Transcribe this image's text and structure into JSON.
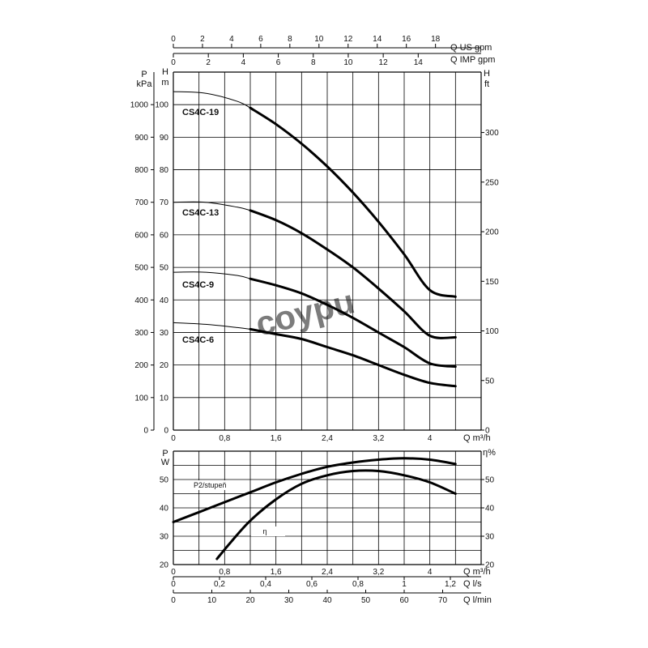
{
  "chart_data": [
    {
      "type": "line",
      "name": "head-curves",
      "x_unit": "Q m³/h",
      "x_range": [
        0,
        4.8
      ],
      "x_ticks": [
        "0",
        "0,8",
        "1,6",
        "2,4",
        "3,2",
        "4"
      ],
      "left_axes": {
        "pressure": {
          "label_top": "P",
          "label_bottom": "kPa",
          "range": [
            0,
            1100
          ],
          "ticks": [
            "0",
            "100",
            "200",
            "300",
            "400",
            "500",
            "600",
            "700",
            "800",
            "900",
            "1000"
          ]
        },
        "head_m": {
          "label_top": "H",
          "label_bottom": "m",
          "range": [
            0,
            110
          ],
          "ticks": [
            "0",
            "10",
            "20",
            "30",
            "40",
            "50",
            "60",
            "70",
            "80",
            "90",
            "100"
          ]
        }
      },
      "right_axis": {
        "label_top": "H",
        "label_bottom": "ft",
        "ticks": [
          "0",
          "50",
          "100",
          "150",
          "200",
          "250",
          "300"
        ],
        "ft_per_m": 3.2808
      },
      "top_axes": {
        "us_gpm": {
          "label": "Q US gpm",
          "ticks": [
            "0",
            "2",
            "4",
            "6",
            "8",
            "10",
            "12",
            "14",
            "16",
            "18"
          ],
          "gpm_per_m3h": 4.4029
        },
        "imp_gpm": {
          "label": "Q IMP gpm",
          "ticks": [
            "0",
            "2",
            "4",
            "6",
            "8",
            "10",
            "12",
            "14"
          ],
          "gpm_per_m3h": 3.6662
        }
      },
      "operating_range": [
        1.2,
        4.4
      ],
      "series": [
        {
          "name": "CS4C-19",
          "x": [
            0,
            0.5,
            1.0,
            1.2,
            1.6,
            2.0,
            2.4,
            2.8,
            3.2,
            3.6,
            4.0,
            4.4
          ],
          "y": [
            104,
            103.5,
            101,
            99,
            94,
            88,
            81,
            73,
            64,
            54,
            43,
            41
          ]
        },
        {
          "name": "CS4C-13",
          "x": [
            0,
            0.5,
            1.0,
            1.2,
            1.6,
            2.0,
            2.4,
            2.8,
            3.2,
            3.6,
            4.0,
            4.4
          ],
          "y": [
            70,
            70,
            68.5,
            67.5,
            64.5,
            60.5,
            55.5,
            50,
            43.5,
            36.5,
            29,
            28.5
          ]
        },
        {
          "name": "CS4C-9",
          "x": [
            0,
            0.5,
            1.0,
            1.2,
            1.6,
            2.0,
            2.4,
            2.8,
            3.2,
            3.6,
            4.0,
            4.4
          ],
          "y": [
            48.5,
            48.5,
            47.5,
            46.5,
            44.5,
            42,
            38.5,
            34.5,
            30,
            25.5,
            20.5,
            19.5
          ]
        },
        {
          "name": "CS4C-6",
          "x": [
            0,
            0.5,
            1.0,
            1.2,
            1.6,
            2.0,
            2.4,
            2.8,
            3.2,
            3.6,
            4.0,
            4.4
          ],
          "y": [
            33,
            32.5,
            31.5,
            31,
            29.5,
            28,
            25.5,
            23,
            20,
            17,
            14.5,
            13.5
          ]
        }
      ],
      "watermark": "coypu"
    },
    {
      "type": "line",
      "name": "power-efficiency",
      "x_unit": "Q m³/h",
      "x_range": [
        0,
        4.8
      ],
      "x_ticks": [
        "0",
        "0,8",
        "1,6",
        "2,4",
        "3,2",
        "4"
      ],
      "left_axis": {
        "label_top": "P",
        "label_bottom": "W",
        "range": [
          20,
          60
        ],
        "ticks": [
          "20",
          "30",
          "40",
          "50"
        ]
      },
      "right_axis": {
        "label": "η%",
        "range": [
          20,
          60
        ],
        "ticks": [
          "20",
          "30",
          "40",
          "50"
        ]
      },
      "bottom_axes": {
        "l_s": {
          "label": "Q l/s",
          "ticks": [
            "0",
            "0,2",
            "0,4",
            "0,6",
            "0,8",
            "1",
            "1,2"
          ]
        },
        "l_min": {
          "label": "Q l/min",
          "ticks": [
            "0",
            "10",
            "20",
            "30",
            "40",
            "50",
            "60",
            "70"
          ]
        }
      },
      "series": [
        {
          "name": "P2/stupeň",
          "x": [
            0,
            0.4,
            0.8,
            1.2,
            1.6,
            2.0,
            2.4,
            2.8,
            3.2,
            3.6,
            4.0,
            4.4
          ],
          "y": [
            35,
            38.5,
            42,
            45.5,
            49,
            52,
            54.5,
            56,
            57,
            57.5,
            57,
            55.5
          ]
        },
        {
          "name": "η",
          "x": [
            0.68,
            0.9,
            1.2,
            1.6,
            2.0,
            2.4,
            2.8,
            3.2,
            3.6,
            4.0,
            4.4
          ],
          "y": [
            22,
            28,
            35.5,
            43,
            48.5,
            51.5,
            53,
            53,
            51.5,
            49,
            45
          ]
        }
      ]
    }
  ]
}
